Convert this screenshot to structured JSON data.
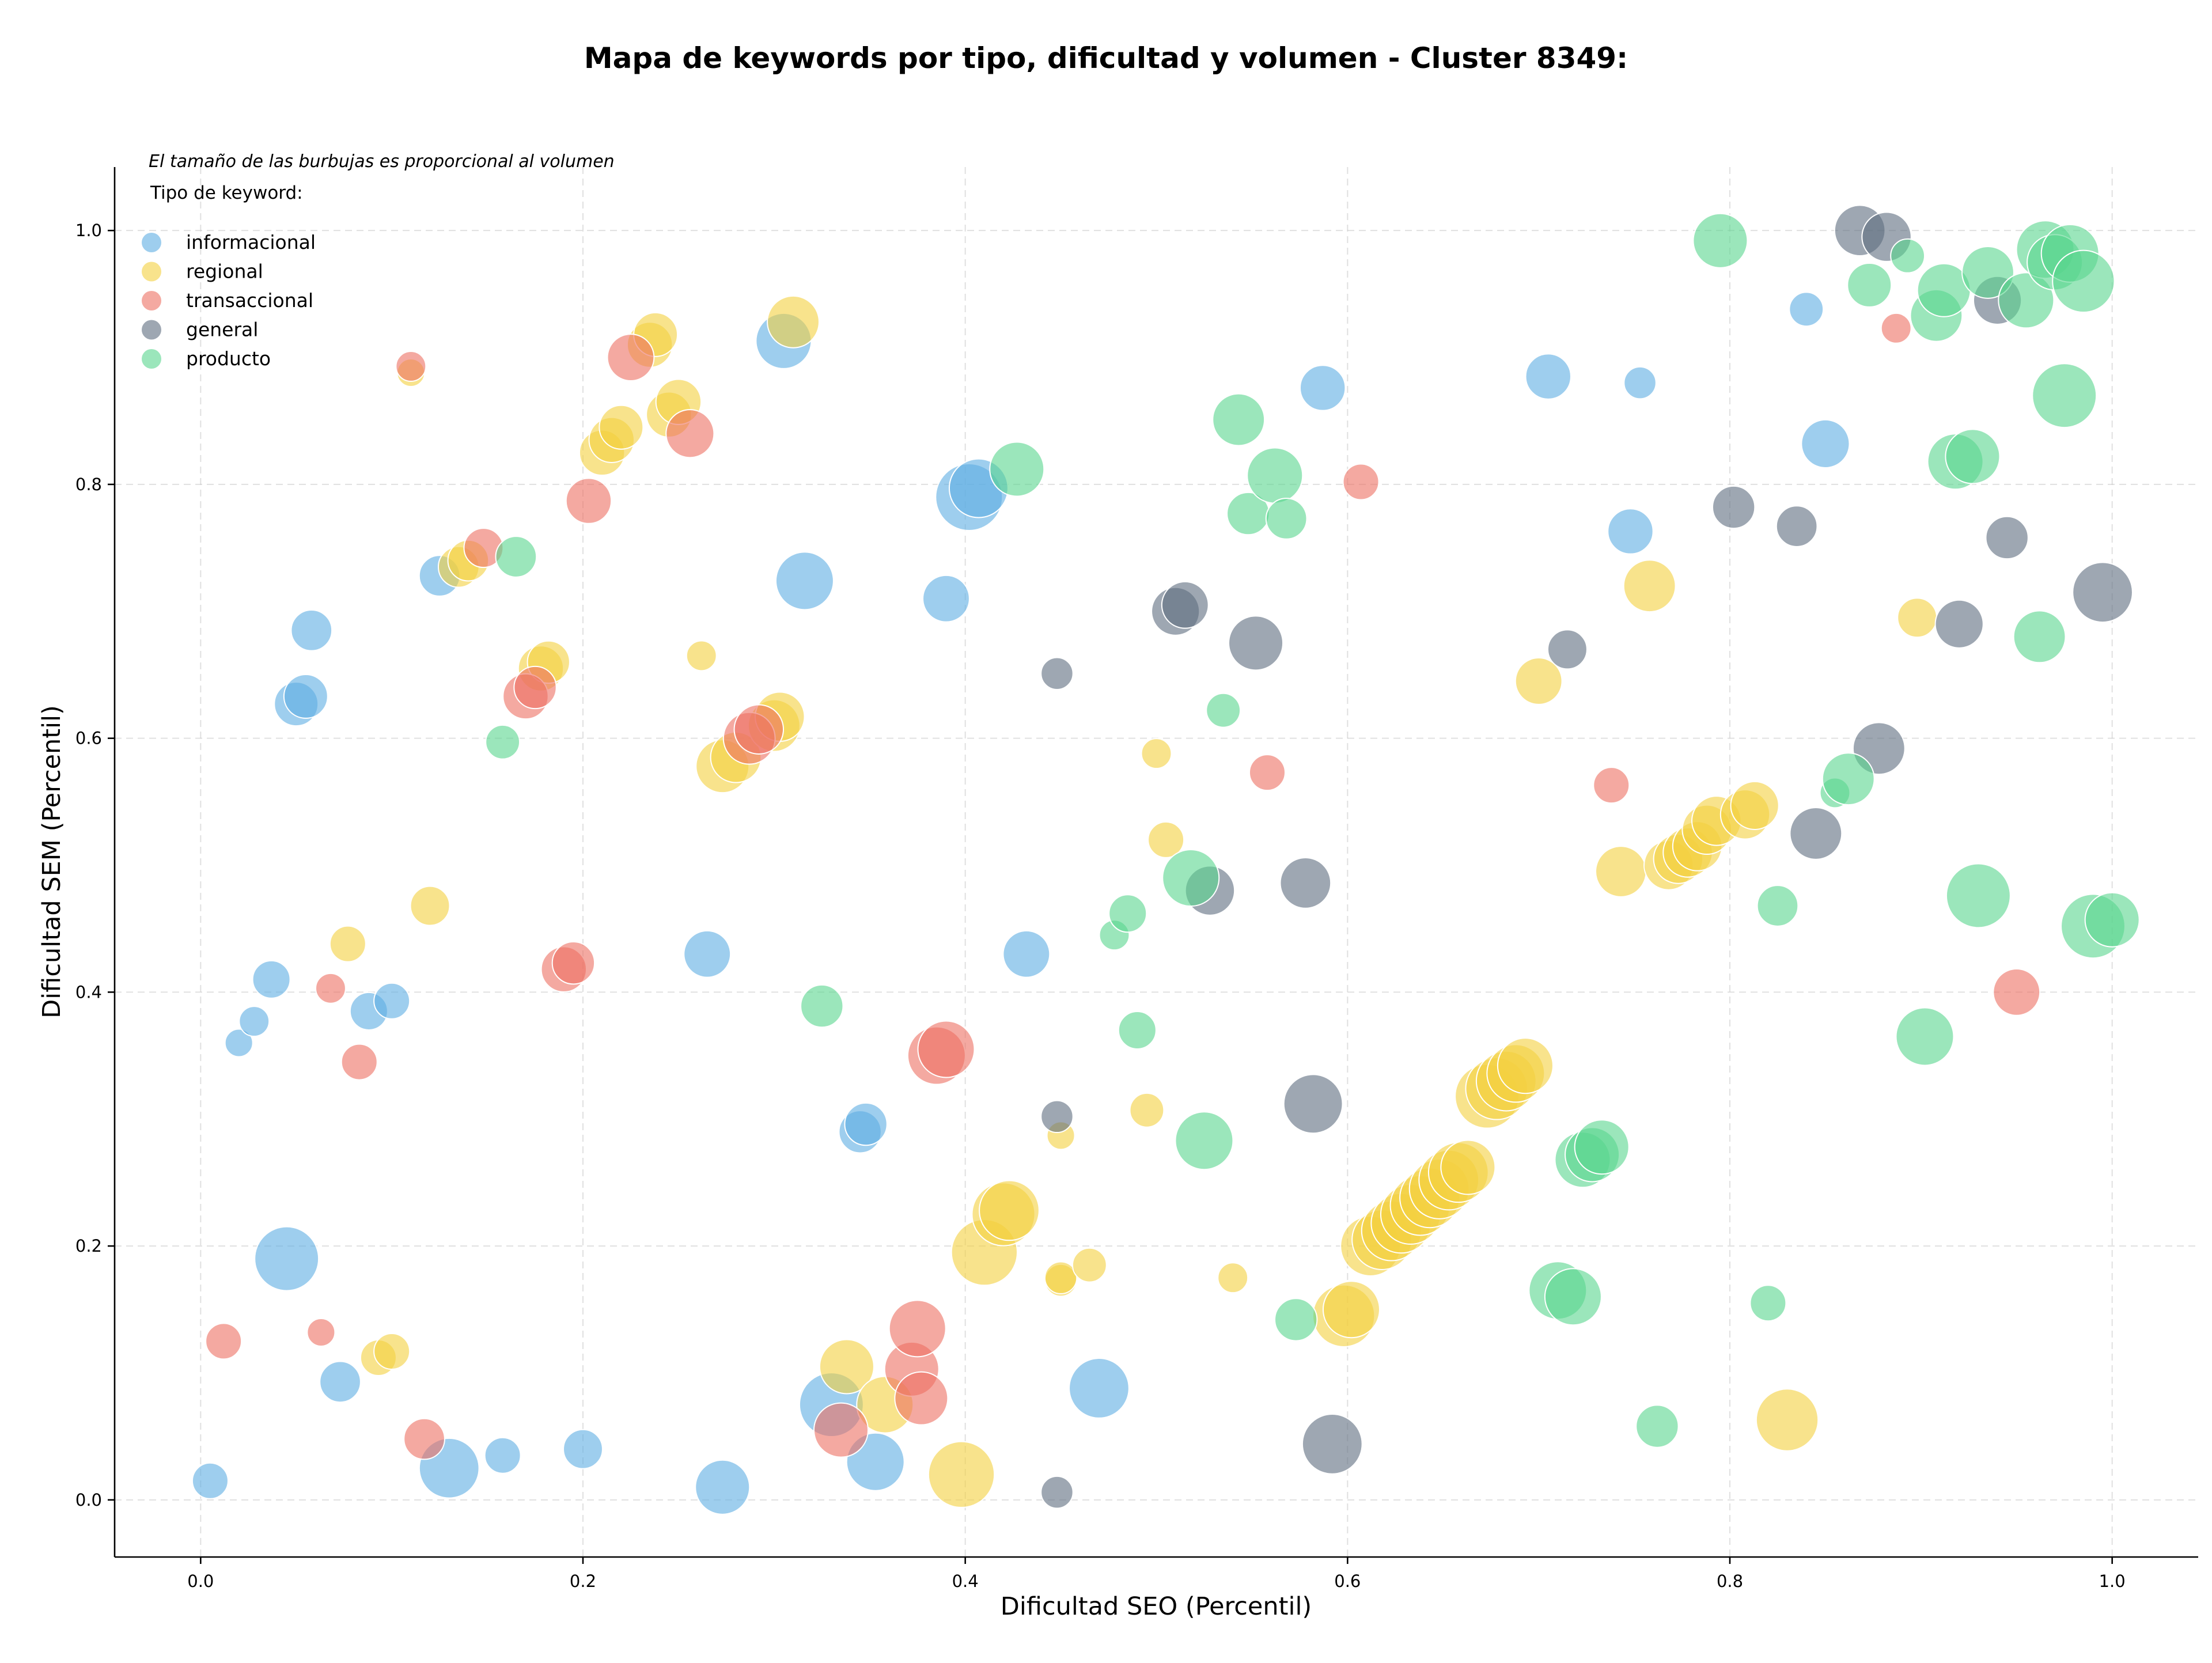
{
  "chart_data": {
    "type": "scatter",
    "title": "Mapa de keywords por tipo, dificultad y volumen - Cluster 8349:",
    "xlabel": "Dificultad SEO (Percentil)",
    "ylabel": "Dificultad SEM (Percentil)",
    "xlim": [
      -0.045,
      1.045
    ],
    "ylim": [
      -0.045,
      1.05
    ],
    "xticks": [
      "0.0",
      "0.2",
      "0.4",
      "0.6",
      "0.8",
      "1.0"
    ],
    "yticks": [
      "0.0",
      "0.2",
      "0.4",
      "0.6",
      "0.8",
      "1.0"
    ],
    "grid": true,
    "note": "El tamaño de las burbujas es proporcional al volumen",
    "legend": {
      "title": "Tipo de keyword:",
      "placement": "top-left"
    },
    "series": [
      {
        "name": "informacional",
        "color": "#5DADE2",
        "points": [
          [
            0.005,
            0.015,
            1
          ],
          [
            0.02,
            0.36,
            0.6
          ],
          [
            0.028,
            0.377,
            0.7
          ],
          [
            0.037,
            0.41,
            1.1
          ],
          [
            0.045,
            0.19,
            3.2
          ],
          [
            0.05,
            0.627,
            1.5
          ],
          [
            0.055,
            0.633,
            1.5
          ],
          [
            0.058,
            0.685,
            1.3
          ],
          [
            0.073,
            0.093,
            1.3
          ],
          [
            0.088,
            0.385,
            1.1
          ],
          [
            0.1,
            0.393,
            1
          ],
          [
            0.125,
            0.728,
            1.3
          ],
          [
            0.13,
            0.025,
            2.8
          ],
          [
            0.158,
            0.035,
            1
          ],
          [
            0.2,
            0.04,
            1.2
          ],
          [
            0.265,
            0.43,
            1.7
          ],
          [
            0.273,
            0.01,
            2.3
          ],
          [
            0.305,
            0.913,
            2.4
          ],
          [
            0.316,
            0.724,
            2.6
          ],
          [
            0.33,
            0.075,
            3.2
          ],
          [
            0.345,
            0.29,
            1.4
          ],
          [
            0.348,
            0.296,
            1.4
          ],
          [
            0.353,
            0.03,
            2.6
          ],
          [
            0.39,
            0.71,
            1.7
          ],
          [
            0.402,
            0.79,
            3.5
          ],
          [
            0.407,
            0.797,
            2.7
          ],
          [
            0.432,
            0.43,
            1.7
          ],
          [
            0.47,
            0.088,
            2.8
          ],
          [
            0.587,
            0.876,
            1.6
          ],
          [
            0.705,
            0.885,
            1.6
          ],
          [
            0.748,
            0.763,
            1.6
          ],
          [
            0.753,
            0.88,
            0.8
          ],
          [
            0.84,
            0.938,
            0.9
          ],
          [
            0.85,
            0.832,
            1.8
          ]
        ]
      },
      {
        "name": "regional",
        "color": "#F4D03F",
        "points": [
          [
            0.093,
            0.112,
            1
          ],
          [
            0.1,
            0.117,
            1
          ],
          [
            0.11,
            0.888,
            0.6
          ],
          [
            0.077,
            0.438,
            1
          ],
          [
            0.12,
            0.468,
            1.2
          ],
          [
            0.135,
            0.735,
            1.3
          ],
          [
            0.14,
            0.74,
            1.3
          ],
          [
            0.178,
            0.655,
            1.6
          ],
          [
            0.182,
            0.66,
            1.4
          ],
          [
            0.21,
            0.825,
            1.6
          ],
          [
            0.215,
            0.835,
            1.6
          ],
          [
            0.22,
            0.845,
            1.5
          ],
          [
            0.235,
            0.91,
            1.6
          ],
          [
            0.238,
            0.918,
            1.5
          ],
          [
            0.245,
            0.855,
            1.6
          ],
          [
            0.25,
            0.865,
            1.6
          ],
          [
            0.262,
            0.665,
            0.7
          ],
          [
            0.273,
            0.578,
            2.2
          ],
          [
            0.28,
            0.585,
            2
          ],
          [
            0.3,
            0.61,
            2.1
          ],
          [
            0.303,
            0.617,
            1.9
          ],
          [
            0.31,
            0.928,
            2.1
          ],
          [
            0.338,
            0.105,
            2.3
          ],
          [
            0.358,
            0.075,
            2.5
          ],
          [
            0.398,
            0.02,
            3.4
          ],
          [
            0.41,
            0.195,
            3.4
          ],
          [
            0.42,
            0.225,
            3.1
          ],
          [
            0.423,
            0.228,
            2.8
          ],
          [
            0.45,
            0.173,
            0.8
          ],
          [
            0.45,
            0.175,
            0.8
          ],
          [
            0.45,
            0.287,
            0.6
          ],
          [
            0.465,
            0.185,
            0.9
          ],
          [
            0.495,
            0.307,
            0.9
          ],
          [
            0.5,
            0.588,
            0.7
          ],
          [
            0.505,
            0.52,
            1
          ],
          [
            0.54,
            0.175,
            0.7
          ],
          [
            0.598,
            0.145,
            3
          ],
          [
            0.602,
            0.15,
            2.5
          ],
          [
            0.612,
            0.2,
            2.8
          ],
          [
            0.618,
            0.205,
            2.8
          ],
          [
            0.623,
            0.212,
            2.8
          ],
          [
            0.628,
            0.218,
            2.8
          ],
          [
            0.633,
            0.225,
            2.8
          ],
          [
            0.638,
            0.232,
            2.8
          ],
          [
            0.643,
            0.238,
            2.8
          ],
          [
            0.648,
            0.245,
            2.8
          ],
          [
            0.653,
            0.252,
            2.8
          ],
          [
            0.658,
            0.258,
            2.8
          ],
          [
            0.663,
            0.262,
            2.3
          ],
          [
            0.673,
            0.318,
            3.2
          ],
          [
            0.678,
            0.324,
            3
          ],
          [
            0.683,
            0.33,
            2.8
          ],
          [
            0.688,
            0.336,
            2.6
          ],
          [
            0.693,
            0.342,
            2.4
          ],
          [
            0.7,
            0.645,
            1.7
          ],
          [
            0.743,
            0.495,
            2
          ],
          [
            0.758,
            0.72,
            2.1
          ],
          [
            0.768,
            0.5,
            1.9
          ],
          [
            0.773,
            0.505,
            1.9
          ],
          [
            0.778,
            0.51,
            1.9
          ],
          [
            0.783,
            0.515,
            1.9
          ],
          [
            0.788,
            0.528,
            1.9
          ],
          [
            0.793,
            0.535,
            1.9
          ],
          [
            0.808,
            0.54,
            1.9
          ],
          [
            0.813,
            0.547,
            1.8
          ],
          [
            0.83,
            0.063,
            3
          ],
          [
            0.898,
            0.695,
            1.2
          ]
        ]
      },
      {
        "name": "transaccional",
        "color": "#EC7063",
        "points": [
          [
            0.012,
            0.125,
            1
          ],
          [
            0.063,
            0.132,
            0.6
          ],
          [
            0.068,
            0.403,
            0.7
          ],
          [
            0.083,
            0.345,
            1
          ],
          [
            0.11,
            0.893,
            0.7
          ],
          [
            0.117,
            0.048,
            1.3
          ],
          [
            0.148,
            0.75,
            1.2
          ],
          [
            0.17,
            0.633,
            1.6
          ],
          [
            0.175,
            0.64,
            1.4
          ],
          [
            0.19,
            0.418,
            1.6
          ],
          [
            0.195,
            0.423,
            1.4
          ],
          [
            0.203,
            0.787,
            1.6
          ],
          [
            0.225,
            0.9,
            1.7
          ],
          [
            0.256,
            0.84,
            1.8
          ],
          [
            0.287,
            0.6,
            2.1
          ],
          [
            0.292,
            0.607,
            1.9
          ],
          [
            0.335,
            0.055,
            2.3
          ],
          [
            0.372,
            0.103,
            2.3
          ],
          [
            0.375,
            0.135,
            2.5
          ],
          [
            0.377,
            0.08,
            2.2
          ],
          [
            0.385,
            0.35,
            2.6
          ],
          [
            0.39,
            0.355,
            2.5
          ],
          [
            0.607,
            0.802,
            1
          ],
          [
            0.558,
            0.573,
            1
          ],
          [
            0.738,
            0.563,
            1
          ],
          [
            0.887,
            0.923,
            0.7
          ],
          [
            0.95,
            0.4,
            1.7
          ]
        ]
      },
      {
        "name": "general",
        "color": "#5D6D7E",
        "points": [
          [
            0.448,
            0.006,
            0.8
          ],
          [
            0.448,
            0.302,
            0.8
          ],
          [
            0.448,
            0.651,
            0.8
          ],
          [
            0.51,
            0.7,
            1.8
          ],
          [
            0.515,
            0.705,
            1.7
          ],
          [
            0.528,
            0.48,
            1.9
          ],
          [
            0.552,
            0.675,
            2.3
          ],
          [
            0.578,
            0.486,
            2
          ],
          [
            0.582,
            0.312,
            2.7
          ],
          [
            0.592,
            0.044,
            2.8
          ],
          [
            0.715,
            0.67,
            1.2
          ],
          [
            0.802,
            0.782,
            1.4
          ],
          [
            0.835,
            0.767,
            1.3
          ],
          [
            0.845,
            0.525,
            2.1
          ],
          [
            0.868,
            1.0,
            2
          ],
          [
            0.878,
            0.592,
            2.1
          ],
          [
            0.882,
            0.995,
            1.9
          ],
          [
            0.92,
            0.69,
            1.8
          ],
          [
            0.94,
            0.945,
            1.8
          ],
          [
            0.945,
            0.758,
            1.4
          ],
          [
            0.995,
            0.715,
            2.8
          ]
        ]
      },
      {
        "name": "producto",
        "color": "#58D68D",
        "points": [
          [
            0.165,
            0.743,
            1.3
          ],
          [
            0.158,
            0.597,
            0.9
          ],
          [
            0.325,
            0.389,
            1.4
          ],
          [
            0.427,
            0.812,
            2.3
          ],
          [
            0.478,
            0.445,
            0.7
          ],
          [
            0.485,
            0.462,
            1.1
          ],
          [
            0.49,
            0.37,
            1.1
          ],
          [
            0.518,
            0.49,
            2.5
          ],
          [
            0.525,
            0.283,
            2.6
          ],
          [
            0.535,
            0.622,
            0.9
          ],
          [
            0.543,
            0.851,
            2.1
          ],
          [
            0.548,
            0.777,
            1.4
          ],
          [
            0.562,
            0.807,
            2.4
          ],
          [
            0.568,
            0.773,
            1.3
          ],
          [
            0.573,
            0.142,
            1.4
          ],
          [
            0.71,
            0.165,
            2.6
          ],
          [
            0.718,
            0.16,
            2.5
          ],
          [
            0.723,
            0.268,
            2.4
          ],
          [
            0.728,
            0.272,
            2.3
          ],
          [
            0.733,
            0.278,
            2.3
          ],
          [
            0.762,
            0.058,
            1.4
          ],
          [
            0.795,
            0.992,
            2.3
          ],
          [
            0.82,
            0.155,
            1
          ],
          [
            0.825,
            0.468,
            1.3
          ],
          [
            0.855,
            0.557,
            0.7
          ],
          [
            0.862,
            0.568,
            2.1
          ],
          [
            0.873,
            0.957,
            1.5
          ],
          [
            0.893,
            0.98,
            0.9
          ],
          [
            0.902,
            0.365,
            2.6
          ],
          [
            0.908,
            0.933,
            2.1
          ],
          [
            0.912,
            0.953,
            2.2
          ],
          [
            0.918,
            0.818,
            2.4
          ],
          [
            0.927,
            0.822,
            2.3
          ],
          [
            0.93,
            0.476,
            3.2
          ],
          [
            0.935,
            0.967,
            2.1
          ],
          [
            0.955,
            0.945,
            2.4
          ],
          [
            0.962,
            0.68,
            2.1
          ],
          [
            0.965,
            0.985,
            2.6
          ],
          [
            0.97,
            0.975,
            2.4
          ],
          [
            0.975,
            0.87,
            3.2
          ],
          [
            0.978,
            0.982,
            2.6
          ],
          [
            0.99,
            0.452,
            3.2
          ],
          [
            0.985,
            0.96,
            3
          ],
          [
            1.0,
            0.457,
            2.3
          ]
        ]
      }
    ]
  }
}
